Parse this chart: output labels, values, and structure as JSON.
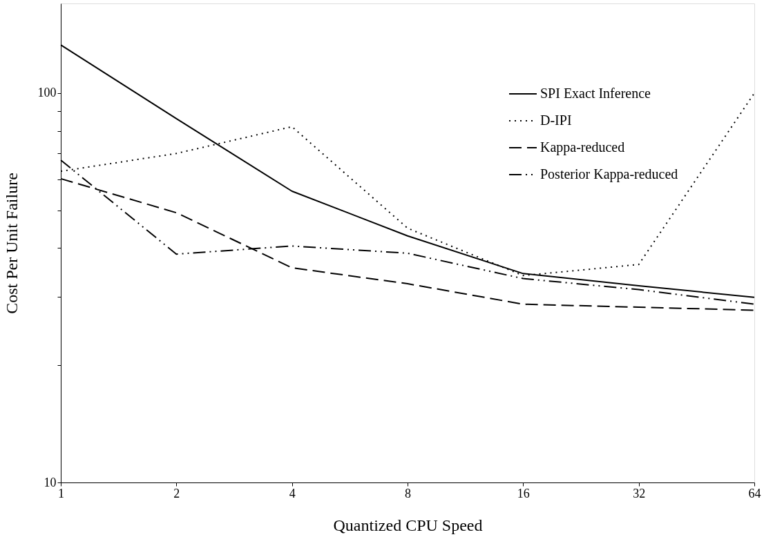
{
  "chart_data": {
    "type": "line",
    "xlabel": "Quantized CPU Speed",
    "ylabel": "Cost Per Unit Failure",
    "x": [
      1,
      2,
      4,
      8,
      16,
      32,
      64
    ],
    "series": [
      {
        "name": "SPI Exact Inference",
        "color": "#000000",
        "line_style": "solid",
        "values": [
          133,
          86,
          56,
          43,
          34.4,
          32,
          29.9
        ]
      },
      {
        "name": "D-IPI",
        "color": "#000000",
        "line_style": "dotted",
        "values": [
          63,
          70,
          82,
          45,
          34,
          36.3,
          100
        ]
      },
      {
        "name": "Kappa-reduced",
        "color": "#000000",
        "line_style": "dashed",
        "values": [
          60.3,
          49.3,
          35.6,
          32.4,
          28.7,
          28.2,
          27.7
        ]
      },
      {
        "name": "Posterior Kappa-reduced",
        "color": "#000000",
        "line_style": "dashdot",
        "values": [
          67.3,
          38.6,
          40.5,
          38.8,
          33.4,
          31.3,
          28.7
        ]
      }
    ],
    "log": "xy",
    "xlim": [
      1,
      64
    ],
    "xticks": [
      1,
      2,
      4,
      8,
      16,
      32,
      64
    ],
    "ylim": [
      10,
      170
    ],
    "yticks": [
      10,
      {
        "value": 20,
        "label": null
      },
      {
        "value": 30,
        "label": null
      },
      {
        "value": 40,
        "label": null
      },
      {
        "value": 50,
        "label": null
      },
      {
        "value": 60,
        "label": null
      },
      {
        "value": 70,
        "label": null
      },
      {
        "value": 80,
        "label": null
      },
      {
        "value": 90,
        "label": null
      },
      100
    ],
    "grid": false,
    "legend": "top right",
    "marker": "none"
  }
}
